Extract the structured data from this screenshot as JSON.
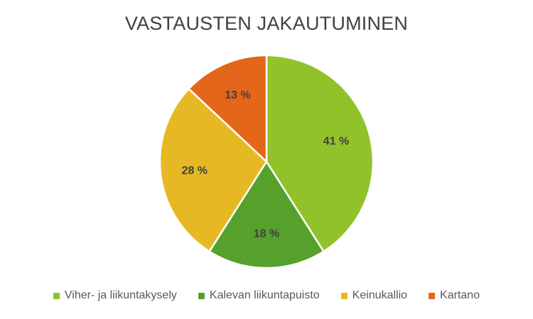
{
  "chart_data": {
    "type": "pie",
    "title": "VASTAUSTEN JAKAUTUMINEN",
    "categories": [
      "Viher- ja liikuntakysely",
      "Kalevan liikuntapuisto",
      "Keinukallio",
      "Kartano"
    ],
    "values": [
      41,
      18,
      28,
      13
    ],
    "labels": [
      "41 %",
      "18 %",
      "28 %",
      "13 %"
    ],
    "colors": [
      "#92c22a",
      "#55a12b",
      "#e6b924",
      "#e4661b"
    ],
    "legend_position": "bottom",
    "start_angle_deg": 0,
    "direction": "clockwise"
  }
}
